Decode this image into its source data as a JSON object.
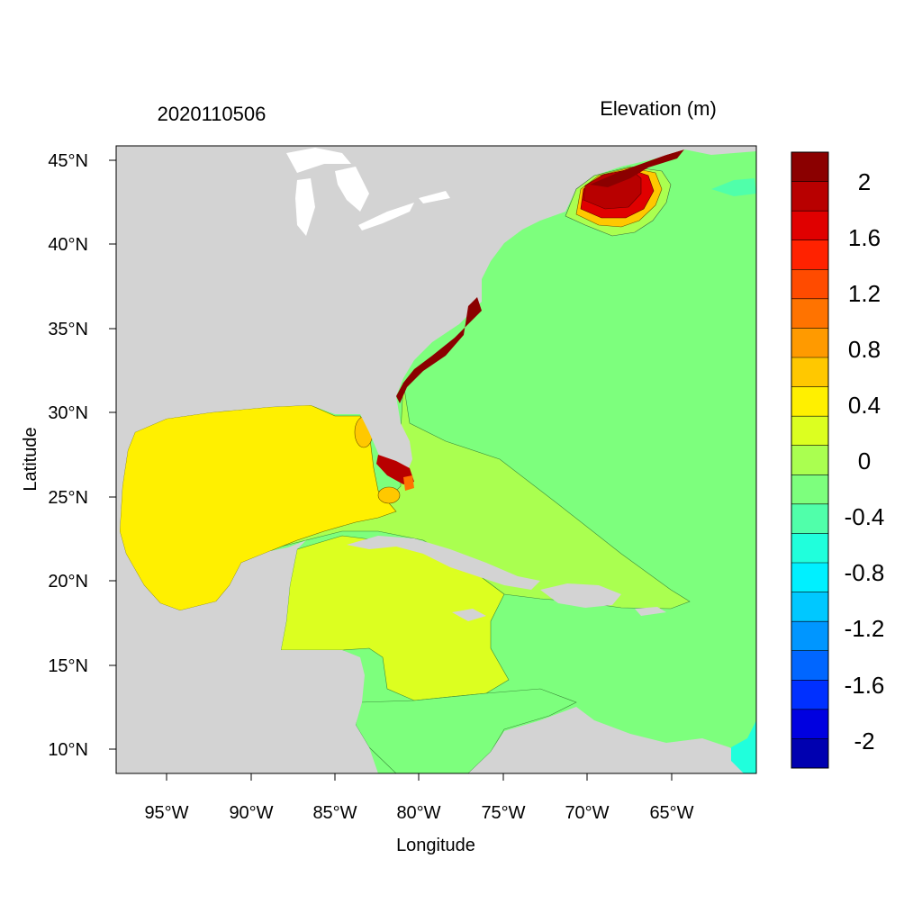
{
  "header": {
    "date_label": "2020110506",
    "variable_label": "Elevation (m)"
  },
  "axes": {
    "xlabel": "Longitude",
    "ylabel": "Latitude",
    "lon_ticks": [
      "95°W",
      "90°W",
      "85°W",
      "80°W",
      "75°W",
      "70°W",
      "65°W"
    ],
    "lat_ticks": [
      "45°N",
      "40°N",
      "35°N",
      "30°N",
      "25°N",
      "20°N",
      "15°N",
      "10°N"
    ]
  },
  "colorbar": {
    "labels": [
      "2",
      "1.6",
      "1.2",
      "0.8",
      "0.4",
      "0",
      "-0.4",
      "-0.8",
      "-1.2",
      "-1.6",
      "-2"
    ],
    "colors": [
      "#8b0000",
      "#b80000",
      "#e00000",
      "#ff2200",
      "#ff4b00",
      "#ff7300",
      "#ff9a00",
      "#ffc800",
      "#fff000",
      "#dcff20",
      "#aaff50",
      "#7dff7d",
      "#50ffaa",
      "#20ffdc",
      "#00f0ff",
      "#00c8ff",
      "#0096ff",
      "#0066ff",
      "#0030ff",
      "#0000e0",
      "#0000b0"
    ]
  },
  "colors": {
    "land": "#d3d3d3",
    "lake": "#ffffff",
    "gulf_of_mexico": "#fff000",
    "caribbean_west": "#dcff20",
    "bahamas_shelf": "#aaff50",
    "atlantic": "#7dff7d",
    "gulf_of_maine_surge": "#b80000"
  }
}
